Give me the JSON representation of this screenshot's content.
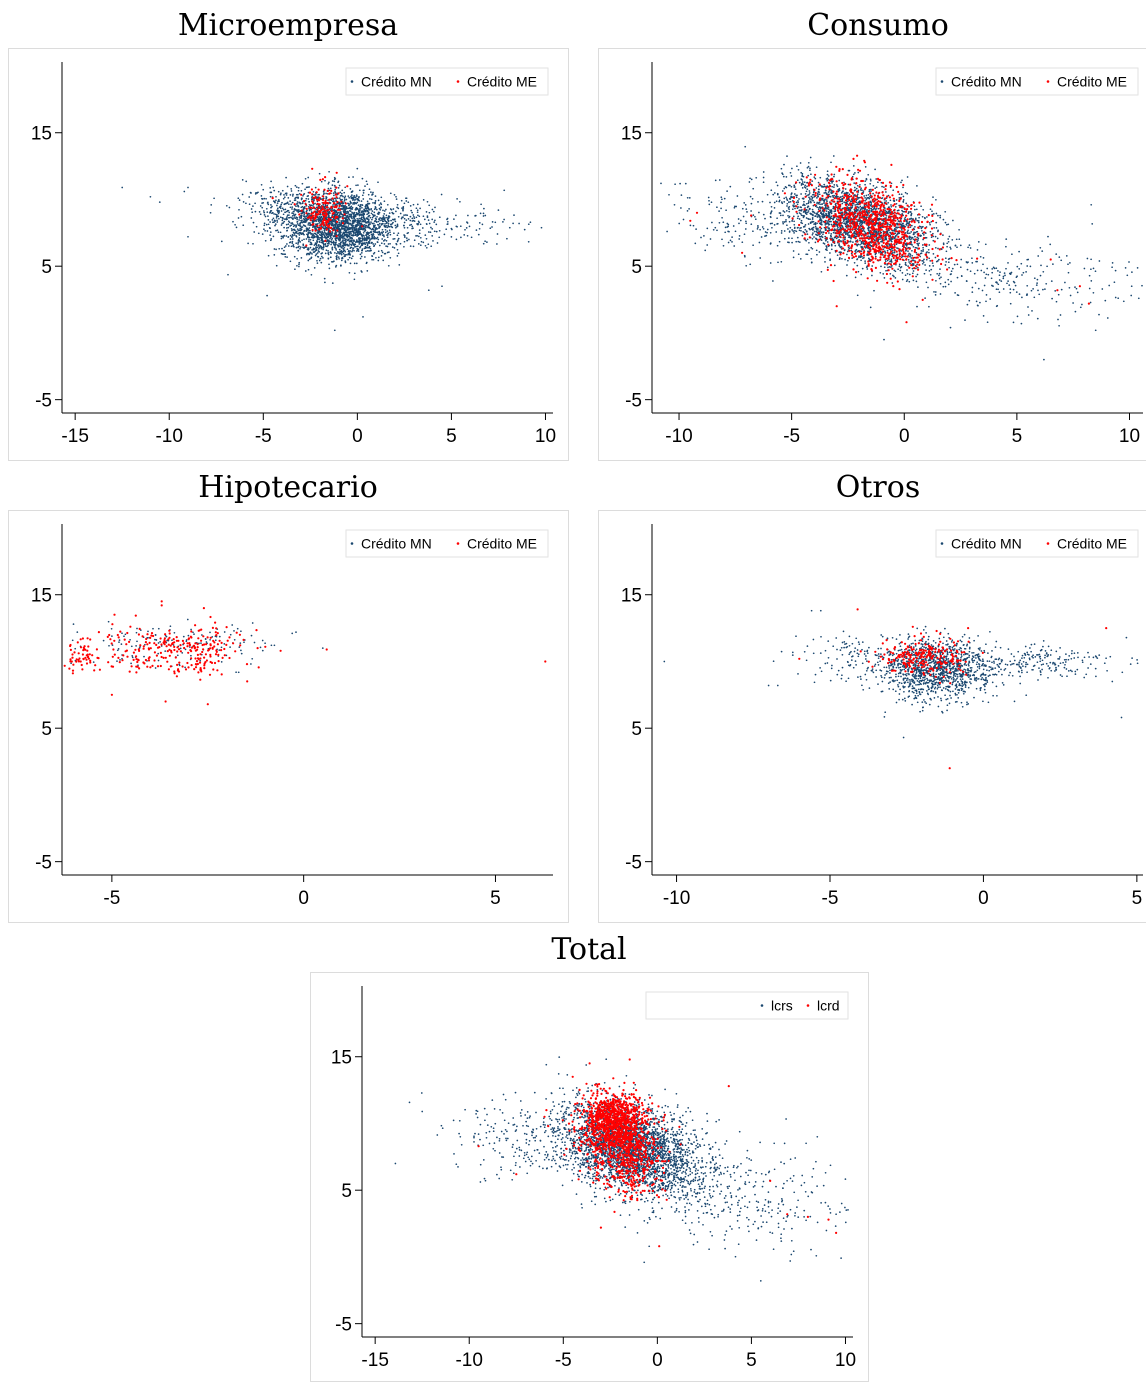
{
  "chart_data": [
    {
      "type": "scatter",
      "title": "Microempresa",
      "xlim": [
        -15.7,
        10.4
      ],
      "ylim": [
        -6,
        20.3
      ],
      "xticks": [
        -15,
        -10,
        -5,
        0,
        5,
        10
      ],
      "yticks": [
        -5,
        5,
        15
      ],
      "legend": "top-right",
      "series": [
        {
          "name": "Crédito MN",
          "color": "#1a476f",
          "clusters": [
            {
              "cx": -1.0,
              "cy": 8.0,
              "sx": 1.5,
              "sy": 1.3,
              "n": 2200,
              "rho": 0
            },
            {
              "cx": 2.5,
              "cy": 8.2,
              "sx": 2.8,
              "sy": 0.9,
              "n": 300,
              "rho": 0
            },
            {
              "cx": -3.8,
              "cy": 9.5,
              "sx": 1.2,
              "sy": 1.0,
              "n": 250,
              "rho": 0
            }
          ],
          "points": [
            [
              -12.5,
              10.9
            ],
            [
              -11,
              10.2
            ],
            [
              -10.5,
              9.8
            ],
            [
              -9.2,
              10.6
            ],
            [
              -9,
              10.9
            ],
            [
              -7.8,
              9.0
            ],
            [
              -9,
              7.2
            ],
            [
              -6.5,
              8.1
            ],
            [
              -6.8,
              9.4
            ],
            [
              -4.8,
              2.8
            ],
            [
              -1.2,
              0.2
            ],
            [
              0.3,
              1.2
            ],
            [
              7.8,
              8.5
            ],
            [
              7.5,
              9.2
            ],
            [
              6.5,
              7.8
            ],
            [
              4.5,
              3.5
            ],
            [
              3.8,
              3.2
            ],
            [
              9.2,
              8.3
            ],
            [
              6.8,
              8.8
            ],
            [
              5.5,
              8.0
            ]
          ]
        },
        {
          "name": "Crédito ME",
          "color": "#ff0000",
          "clusters": [
            {
              "cx": -1.8,
              "cy": 9.2,
              "sx": 0.55,
              "sy": 0.9,
              "n": 160,
              "rho": 0
            }
          ],
          "points": [
            [
              -2.4,
              12.3
            ],
            [
              -1.1,
              12.0
            ],
            [
              -4.5,
              10.1
            ]
          ]
        }
      ]
    },
    {
      "type": "scatter",
      "title": "Consumo",
      "xlim": [
        -11.2,
        10.6
      ],
      "ylim": [
        -6,
        20.3
      ],
      "xticks": [
        -10,
        -5,
        0,
        5,
        10
      ],
      "yticks": [
        -5,
        5,
        15
      ],
      "legend": "top-right",
      "series": [
        {
          "name": "Crédito MN",
          "color": "#1a476f",
          "clusters": [
            {
              "cx": -2.0,
              "cy": 8.3,
              "sx": 1.7,
              "sy": 1.6,
              "n": 2400,
              "rho": -0.45
            },
            {
              "cx": 4.5,
              "cy": 4.0,
              "sx": 3.0,
              "sy": 1.5,
              "n": 260,
              "rho": -0.2
            },
            {
              "cx": -7.0,
              "cy": 8.0,
              "sx": 1.8,
              "sy": 1.5,
              "n": 160,
              "rho": -0.3
            }
          ],
          "points": [
            [
              -10.8,
              11.2
            ],
            [
              -10.2,
              9.6
            ],
            [
              -9.8,
              8.5
            ],
            [
              6.2,
              -2.0
            ],
            [
              8.5,
              0.2
            ],
            [
              5.2,
              0.7
            ],
            [
              -0.9,
              -0.5
            ],
            [
              10.1,
              3.5
            ],
            [
              9.5,
              2.6
            ],
            [
              8.3,
              9.6
            ],
            [
              7.6,
              1.6
            ]
          ]
        },
        {
          "name": "Crédito ME",
          "color": "#ff0000",
          "clusters": [
            {
              "cx": -1.5,
              "cy": 8.0,
              "sx": 1.3,
              "sy": 1.7,
              "n": 800,
              "rho": -0.4
            }
          ],
          "points": [
            [
              -9.5,
              8.4
            ],
            [
              -9.2,
              9.0
            ],
            [
              -7.2,
              6.0
            ],
            [
              -6.8,
              8.8
            ],
            [
              -3,
              2.0
            ],
            [
              0.1,
              0.8
            ],
            [
              6.5,
              5.5
            ],
            [
              7.8,
              3.5
            ],
            [
              8.2,
              2.2
            ],
            [
              6.8,
              3.2
            ]
          ]
        }
      ]
    },
    {
      "type": "scatter",
      "title": "Hipotecario",
      "xlim": [
        -6.3,
        6.5
      ],
      "ylim": [
        -6,
        20.3
      ],
      "xticks": [
        -5,
        0,
        5
      ],
      "yticks": [
        -5,
        5,
        15
      ],
      "legend": "top-right",
      "series": [
        {
          "name": "Crédito MN",
          "color": "#1a476f",
          "clusters": [
            {
              "cx": -3.2,
              "cy": 11.2,
              "sx": 1.2,
              "sy": 0.8,
              "n": 150,
              "rho": 0
            }
          ],
          "points": [
            [
              -0.3,
              12.1
            ],
            [
              -0.2,
              12.2
            ],
            [
              -6,
              12.8
            ],
            [
              -5.9,
              12.2
            ],
            [
              -5,
              11.9
            ],
            [
              -4.8,
              11.6
            ],
            [
              0.5,
              11.0
            ]
          ]
        },
        {
          "name": "Crédito ME",
          "color": "#ff0000",
          "clusters": [
            {
              "cx": -2.8,
              "cy": 11.0,
              "sx": 0.6,
              "sy": 0.9,
              "n": 150,
              "rho": 0
            },
            {
              "cx": -5.8,
              "cy": 10.6,
              "sx": 0.25,
              "sy": 0.7,
              "n": 55,
              "rho": 0
            },
            {
              "cx": -4.2,
              "cy": 10.8,
              "sx": 0.6,
              "sy": 0.9,
              "n": 110,
              "rho": 0
            }
          ],
          "points": [
            [
              -3.7,
              14.5
            ],
            [
              -3.7,
              14.2
            ],
            [
              -2.6,
              14.0
            ],
            [
              -1.2,
              11.0
            ],
            [
              -1.0,
              11.1
            ],
            [
              -0.6,
              10.8
            ],
            [
              0.6,
              10.9
            ],
            [
              6.3,
              10.0
            ],
            [
              -2.5,
              6.8
            ],
            [
              -3.6,
              7.0
            ],
            [
              -5.0,
              7.5
            ]
          ]
        }
      ]
    },
    {
      "type": "scatter",
      "title": "Otros",
      "xlim": [
        -10.8,
        5.2
      ],
      "ylim": [
        -6,
        20.3
      ],
      "xticks": [
        -10,
        -5,
        0,
        5
      ],
      "yticks": [
        -5,
        5,
        15
      ],
      "legend": "top-right",
      "series": [
        {
          "name": "Crédito MN",
          "color": "#1a476f",
          "clusters": [
            {
              "cx": -1.6,
              "cy": 9.4,
              "sx": 0.9,
              "sy": 1.1,
              "n": 1200,
              "rho": 0
            },
            {
              "cx": 1.5,
              "cy": 10.0,
              "sx": 1.5,
              "sy": 0.6,
              "n": 220,
              "rho": 0
            },
            {
              "cx": -4.2,
              "cy": 10.2,
              "sx": 1.1,
              "sy": 1.0,
              "n": 120,
              "rho": 0
            }
          ],
          "points": [
            [
              -10.4,
              10.0
            ],
            [
              -7.0,
              8.2
            ],
            [
              -6.7,
              8.2
            ],
            [
              -5.6,
              13.8
            ],
            [
              -5.3,
              13.8
            ],
            [
              4.5,
              5.8
            ],
            [
              4.8,
              9.8
            ],
            [
              3.5,
              9.8
            ],
            [
              4.2,
              8.5
            ],
            [
              -2.6,
              4.3
            ],
            [
              -3.2,
              6.2
            ]
          ]
        },
        {
          "name": "Crédito ME",
          "color": "#ff0000",
          "clusters": [
            {
              "cx": -2.0,
              "cy": 10.3,
              "sx": 0.7,
              "sy": 0.7,
              "n": 220,
              "rho": 0
            }
          ],
          "points": [
            [
              -4.1,
              13.9
            ],
            [
              4.0,
              12.5
            ],
            [
              -1.1,
              2.0
            ],
            [
              -6.0,
              10.2
            ],
            [
              -2.3,
              12.6
            ],
            [
              -0.5,
              12.5
            ]
          ]
        }
      ]
    },
    {
      "type": "scatter",
      "title": "Total",
      "xlim": [
        -15.7,
        10.4
      ],
      "ylim": [
        -6,
        20.3
      ],
      "xticks": [
        -15,
        -10,
        -5,
        0,
        5,
        10
      ],
      "yticks": [
        -5,
        5,
        15
      ],
      "legend": "top-right",
      "series": [
        {
          "name": "lcrs",
          "color": "#1a476f",
          "clusters": [
            {
              "cx": -1.5,
              "cy": 8.2,
              "sx": 1.8,
              "sy": 1.7,
              "n": 3000,
              "rho": -0.35
            },
            {
              "cx": 3.5,
              "cy": 5.0,
              "sx": 3.0,
              "sy": 2.0,
              "n": 380,
              "rho": -0.3
            },
            {
              "cx": -6.5,
              "cy": 8.5,
              "sx": 2.2,
              "sy": 1.5,
              "n": 240,
              "rho": -0.3
            }
          ],
          "points": [
            [
              -12.5,
              10.9
            ],
            [
              -10.5,
              10.2
            ],
            [
              -9.5,
              9.2
            ],
            [
              5.5,
              -1.8
            ],
            [
              7.8,
              3.0
            ],
            [
              9.5,
              3.2
            ],
            [
              9.8,
              4.0
            ],
            [
              8.5,
              9.0
            ],
            [
              -0.7,
              -0.4
            ]
          ]
        },
        {
          "name": "lcrd",
          "color": "#ff0000",
          "clusters": [
            {
              "cx": -2.0,
              "cy": 8.6,
              "sx": 1.0,
              "sy": 1.8,
              "n": 900,
              "rho": -0.3
            },
            {
              "cx": -2.4,
              "cy": 10.4,
              "sx": 0.8,
              "sy": 0.9,
              "n": 500,
              "rho": 0
            }
          ],
          "points": [
            [
              -6,
              10.5
            ],
            [
              -5.8,
              9.8
            ],
            [
              -5.9,
              11.0
            ],
            [
              -4.5,
              13.5
            ],
            [
              -3.6,
              14.5
            ],
            [
              -9.5,
              8.3
            ],
            [
              -7.5,
              6.2
            ],
            [
              -3.0,
              2.2
            ],
            [
              0.1,
              0.8
            ],
            [
              3.8,
              12.8
            ],
            [
              6.0,
              5.7
            ],
            [
              8.0,
              3.0
            ],
            [
              9.1,
              2.8
            ],
            [
              6.9,
              3.2
            ],
            [
              9.5,
              1.8
            ]
          ]
        }
      ]
    }
  ]
}
